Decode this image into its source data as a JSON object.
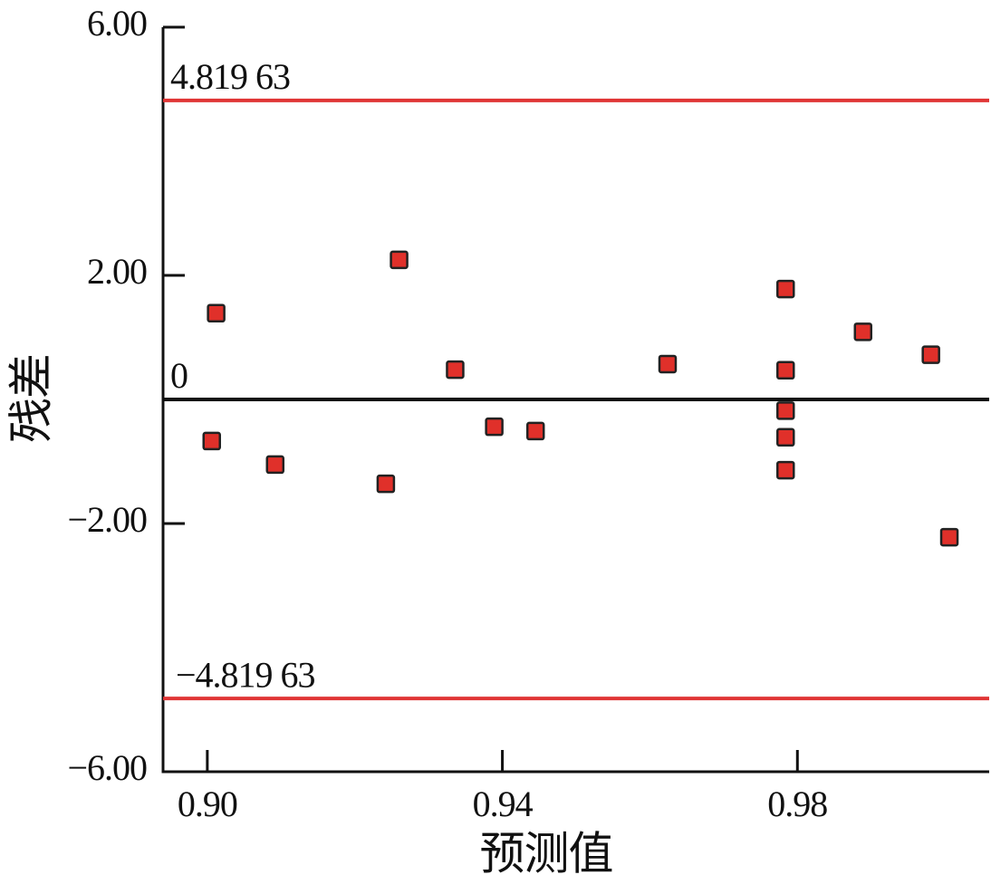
{
  "chart_data": {
    "type": "scatter",
    "x_label": "预测值",
    "y_label": "残差",
    "xlim": [
      0.894,
      1.006
    ],
    "ylim": [
      -6,
      6
    ],
    "xticks": [
      {
        "value": 0.9,
        "label": "0.90"
      },
      {
        "value": 0.94,
        "label": "0.94"
      },
      {
        "value": 0.98,
        "label": "0.98"
      }
    ],
    "yticks": [
      {
        "value": 6,
        "label": "6.00"
      },
      {
        "value": 2,
        "label": "2.00"
      },
      {
        "value": -2,
        "label": "−2.00"
      },
      {
        "value": -6,
        "label": "−6.00"
      }
    ],
    "hlines": [
      {
        "value": 4.81963,
        "label": "4.819 63",
        "color": "#e03535"
      },
      {
        "value": 0,
        "label": "0",
        "color": "#111111"
      },
      {
        "value": -4.81963,
        "label": "−4.819 63",
        "color": "#e03535"
      }
    ],
    "series": [
      {
        "color": "#e0302a",
        "x": [
          0.9012,
          0.9006,
          0.9092,
          0.9242,
          0.926,
          0.9336,
          0.9389,
          0.9445,
          0.9624,
          0.9784,
          0.9784,
          0.9784,
          0.9784,
          0.9784,
          0.9889,
          0.9981,
          1.0006
        ],
        "values": [
          1.39,
          -0.67,
          -1.05,
          -1.36,
          2.25,
          0.48,
          -0.44,
          -0.51,
          0.57,
          1.78,
          0.47,
          -0.18,
          -0.61,
          -1.14,
          1.09,
          0.72,
          -2.22
        ]
      }
    ]
  }
}
